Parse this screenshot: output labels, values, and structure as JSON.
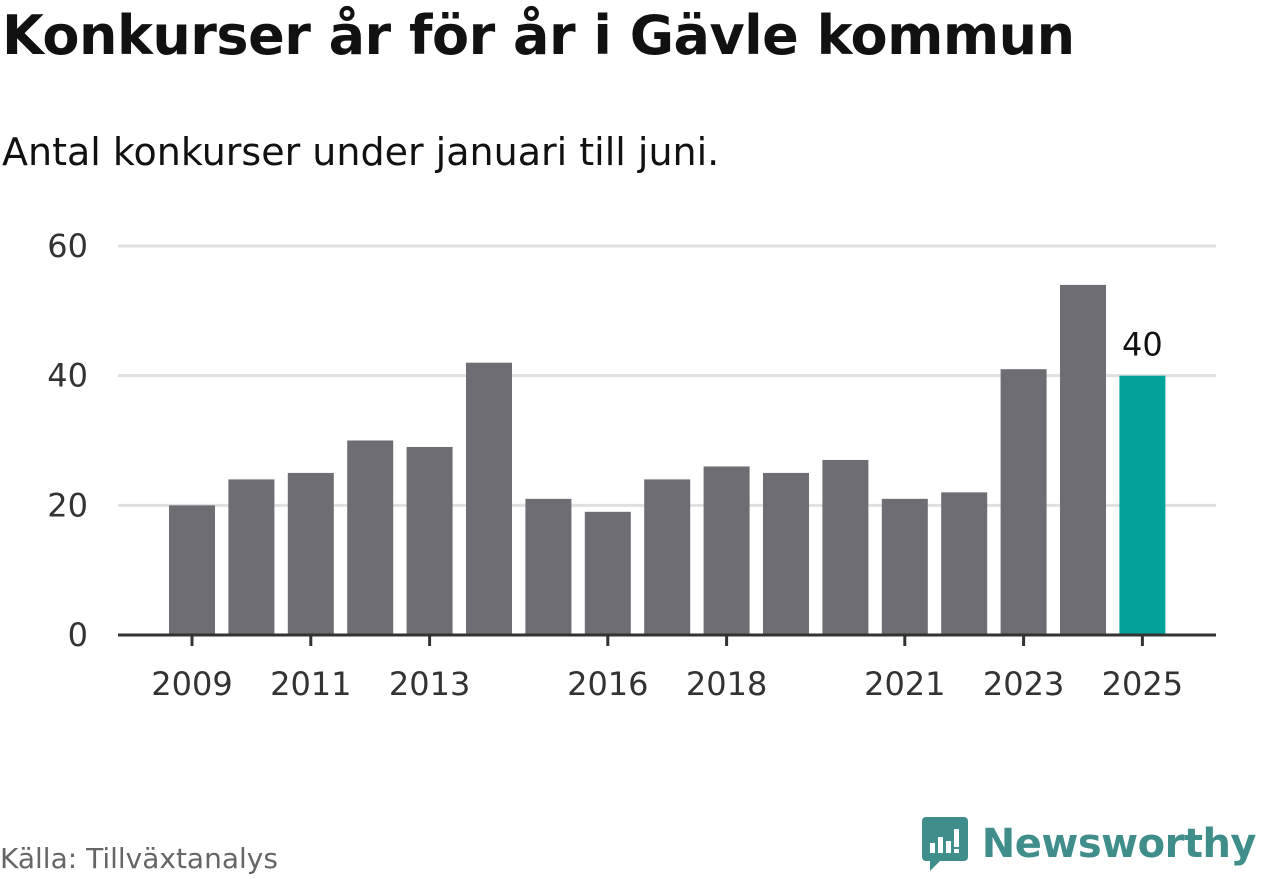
{
  "title": "Konkurser år för år i Gävle kommun",
  "subtitle": "Antal konkurser under januari till juni.",
  "source": "Källa: Tillväxtanalys",
  "brand": {
    "name": "Newsworthy",
    "icon": "newsworthy-logo-icon"
  },
  "colors": {
    "bar": "#6e6d73",
    "highlight": "#00a29a",
    "grid": "#e0e0e0",
    "axis": "#333333",
    "brand": "#3f8e8c"
  },
  "chart_data": {
    "type": "bar",
    "categories": [
      "2009",
      "2010",
      "2011",
      "2012",
      "2013",
      "2014",
      "2015",
      "2016",
      "2017",
      "2018",
      "2019",
      "2020",
      "2021",
      "2022",
      "2023",
      "2024",
      "2025"
    ],
    "values": [
      20,
      24,
      25,
      30,
      29,
      42,
      21,
      19,
      24,
      26,
      25,
      27,
      21,
      22,
      41,
      54,
      40
    ],
    "highlight_category": "2025",
    "highlight_label": "40",
    "xticks": [
      "2009",
      "2011",
      "2013",
      "2016",
      "2018",
      "2021",
      "2023",
      "2025"
    ],
    "yticks": [
      "0",
      "20",
      "40",
      "60"
    ],
    "ylim": [
      0,
      60
    ],
    "grid": true,
    "xlabel": "",
    "ylabel": ""
  }
}
